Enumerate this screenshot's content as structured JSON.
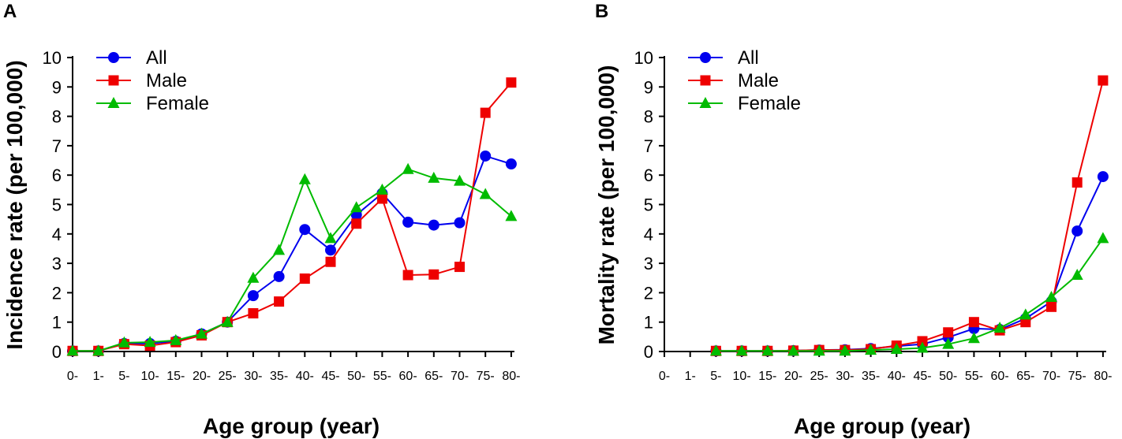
{
  "chart_data": [
    {
      "panel": "A",
      "type": "line",
      "title": "",
      "xlabel": "Age group (year)",
      "ylabel": "Incidence rate (per 100,000)",
      "ylim": [
        0,
        10
      ],
      "yticks": [
        "0",
        "1",
        "2",
        "3",
        "4",
        "5",
        "6",
        "7",
        "8",
        "9",
        "10"
      ],
      "legend_position": "top-left",
      "categories": [
        "0-",
        "1-",
        "5-",
        "10-",
        "15-",
        "20-",
        "25-",
        "30-",
        "35-",
        "40-",
        "45-",
        "50-",
        "55-",
        "60-",
        "65-",
        "70-",
        "75-",
        "80-"
      ],
      "series": [
        {
          "name": "All",
          "color": "#0000ee",
          "marker": "circle",
          "values": [
            0.02,
            0.02,
            0.27,
            0.27,
            0.35,
            0.6,
            1.0,
            1.9,
            2.55,
            4.15,
            3.45,
            4.65,
            5.38,
            4.4,
            4.3,
            4.38,
            6.65,
            6.38
          ]
        },
        {
          "name": "Male",
          "color": "#ee0000",
          "marker": "square",
          "values": [
            0.02,
            0.02,
            0.25,
            0.2,
            0.32,
            0.55,
            1.0,
            1.3,
            1.7,
            2.48,
            3.05,
            4.35,
            5.2,
            2.6,
            2.62,
            2.88,
            8.12,
            9.15
          ]
        },
        {
          "name": "Female",
          "color": "#00bb00",
          "marker": "triangle",
          "values": [
            0.02,
            0.02,
            0.3,
            0.32,
            0.38,
            0.6,
            1.0,
            2.5,
            3.45,
            5.85,
            3.85,
            4.9,
            5.5,
            6.2,
            5.9,
            5.8,
            5.35,
            4.6
          ]
        }
      ]
    },
    {
      "panel": "B",
      "type": "line",
      "title": "",
      "xlabel": "Age group (year)",
      "ylabel": "Mortality rate (per 100,000)",
      "ylim": [
        0,
        10
      ],
      "yticks": [
        "0",
        "1",
        "2",
        "3",
        "4",
        "5",
        "6",
        "7",
        "8",
        "9",
        "10"
      ],
      "legend_position": "top-left",
      "categories": [
        "0-",
        "1-",
        "5-",
        "10-",
        "15-",
        "20-",
        "25-",
        "30-",
        "35-",
        "40-",
        "45-",
        "50-",
        "55-",
        "60-",
        "65-",
        "70-",
        "75-",
        "80-"
      ],
      "series": [
        {
          "name": "All",
          "color": "#0000ee",
          "marker": "circle",
          "values": [
            null,
            null,
            0.02,
            0.02,
            0.02,
            0.03,
            0.05,
            0.06,
            0.1,
            0.18,
            0.25,
            0.48,
            0.78,
            0.75,
            1.12,
            1.7,
            4.1,
            5.95
          ]
        },
        {
          "name": "Male",
          "color": "#ee0000",
          "marker": "square",
          "values": [
            null,
            null,
            0.02,
            0.02,
            0.02,
            0.03,
            0.05,
            0.05,
            0.08,
            0.2,
            0.35,
            0.65,
            1.0,
            0.72,
            1.0,
            1.52,
            5.75,
            9.22
          ]
        },
        {
          "name": "Female",
          "color": "#00bb00",
          "marker": "triangle",
          "values": [
            null,
            null,
            0.02,
            0.02,
            0.02,
            0.02,
            0.02,
            0.02,
            0.05,
            0.08,
            0.12,
            0.25,
            0.45,
            0.8,
            1.25,
            1.85,
            2.6,
            3.85
          ]
        }
      ]
    }
  ]
}
